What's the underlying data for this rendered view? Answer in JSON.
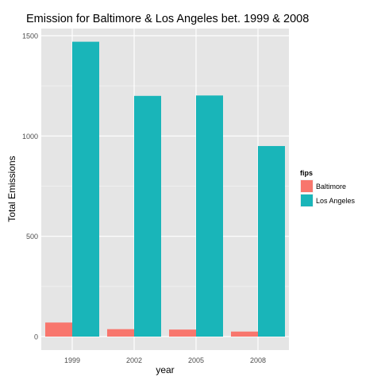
{
  "chart_data": {
    "type": "bar",
    "title": "Emission for Baltimore & Los Angeles bet. 1999 & 2008",
    "xlabel": "year",
    "ylabel": "Total Emissions",
    "categories": [
      "1999",
      "2002",
      "2005",
      "2008"
    ],
    "series": [
      {
        "name": "Baltimore",
        "values": [
          70,
          37,
          35,
          25
        ],
        "color": "#F8766D"
      },
      {
        "name": "Los Angeles",
        "values": [
          1470,
          1200,
          1202,
          950
        ],
        "color": "#19B5B9"
      }
    ],
    "ylim": [
      0,
      1500
    ],
    "yticks": [
      0,
      500,
      1000,
      1500
    ],
    "grid": true,
    "legend": {
      "title": "fips",
      "placement": "right"
    }
  }
}
